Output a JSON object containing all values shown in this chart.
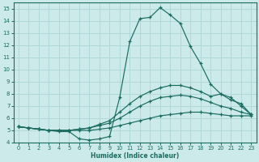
{
  "xlabel": "Humidex (Indice chaleur)",
  "xlim": [
    -0.5,
    23.5
  ],
  "ylim": [
    4,
    15.5
  ],
  "xticks": [
    0,
    1,
    2,
    3,
    4,
    5,
    6,
    7,
    8,
    9,
    10,
    11,
    12,
    13,
    14,
    15,
    16,
    17,
    18,
    19,
    20,
    21,
    22,
    23
  ],
  "yticks": [
    4,
    5,
    6,
    7,
    8,
    9,
    10,
    11,
    12,
    13,
    14,
    15
  ],
  "bg_color": "#cdeaea",
  "line_color": "#1a6b60",
  "grid_color": "#b0d8d8",
  "curve_peak_x": [
    0,
    1,
    2,
    3,
    4,
    5,
    6,
    7,
    8,
    9,
    10,
    11,
    12,
    13,
    14,
    15,
    16,
    17,
    18,
    19,
    20,
    21,
    22,
    23
  ],
  "curve_peak_y": [
    5.3,
    5.2,
    5.1,
    5.0,
    4.9,
    4.9,
    4.3,
    4.2,
    4.3,
    4.5,
    7.7,
    12.3,
    14.2,
    14.3,
    15.1,
    14.5,
    13.8,
    11.9,
    10.5,
    8.8,
    8.0,
    7.7,
    7.0,
    6.3
  ],
  "curve_high_x": [
    0,
    1,
    2,
    3,
    4,
    5,
    6,
    7,
    8,
    9,
    10,
    11,
    12,
    13,
    14,
    15,
    16,
    17,
    18,
    19,
    20,
    21,
    22,
    23
  ],
  "curve_high_y": [
    5.3,
    5.2,
    5.1,
    5.0,
    5.0,
    5.0,
    5.1,
    5.2,
    5.5,
    5.8,
    6.5,
    7.2,
    7.8,
    8.2,
    8.5,
    8.7,
    8.7,
    8.5,
    8.2,
    7.8,
    8.0,
    7.5,
    7.2,
    6.3
  ],
  "curve_mid_x": [
    0,
    1,
    2,
    3,
    4,
    5,
    6,
    7,
    8,
    9,
    10,
    11,
    12,
    13,
    14,
    15,
    16,
    17,
    18,
    19,
    20,
    21,
    22,
    23
  ],
  "curve_mid_y": [
    5.3,
    5.2,
    5.1,
    5.0,
    5.0,
    5.0,
    5.1,
    5.2,
    5.4,
    5.6,
    6.0,
    6.5,
    7.0,
    7.4,
    7.7,
    7.8,
    7.9,
    7.8,
    7.6,
    7.3,
    7.0,
    6.8,
    6.5,
    6.3
  ],
  "curve_low_x": [
    0,
    1,
    2,
    3,
    4,
    5,
    6,
    7,
    8,
    9,
    10,
    11,
    12,
    13,
    14,
    15,
    16,
    17,
    18,
    19,
    20,
    21,
    22,
    23
  ],
  "curve_low_y": [
    5.3,
    5.2,
    5.1,
    5.0,
    5.0,
    5.0,
    5.0,
    5.0,
    5.1,
    5.2,
    5.4,
    5.6,
    5.8,
    6.0,
    6.2,
    6.3,
    6.4,
    6.5,
    6.5,
    6.4,
    6.3,
    6.2,
    6.2,
    6.2
  ]
}
